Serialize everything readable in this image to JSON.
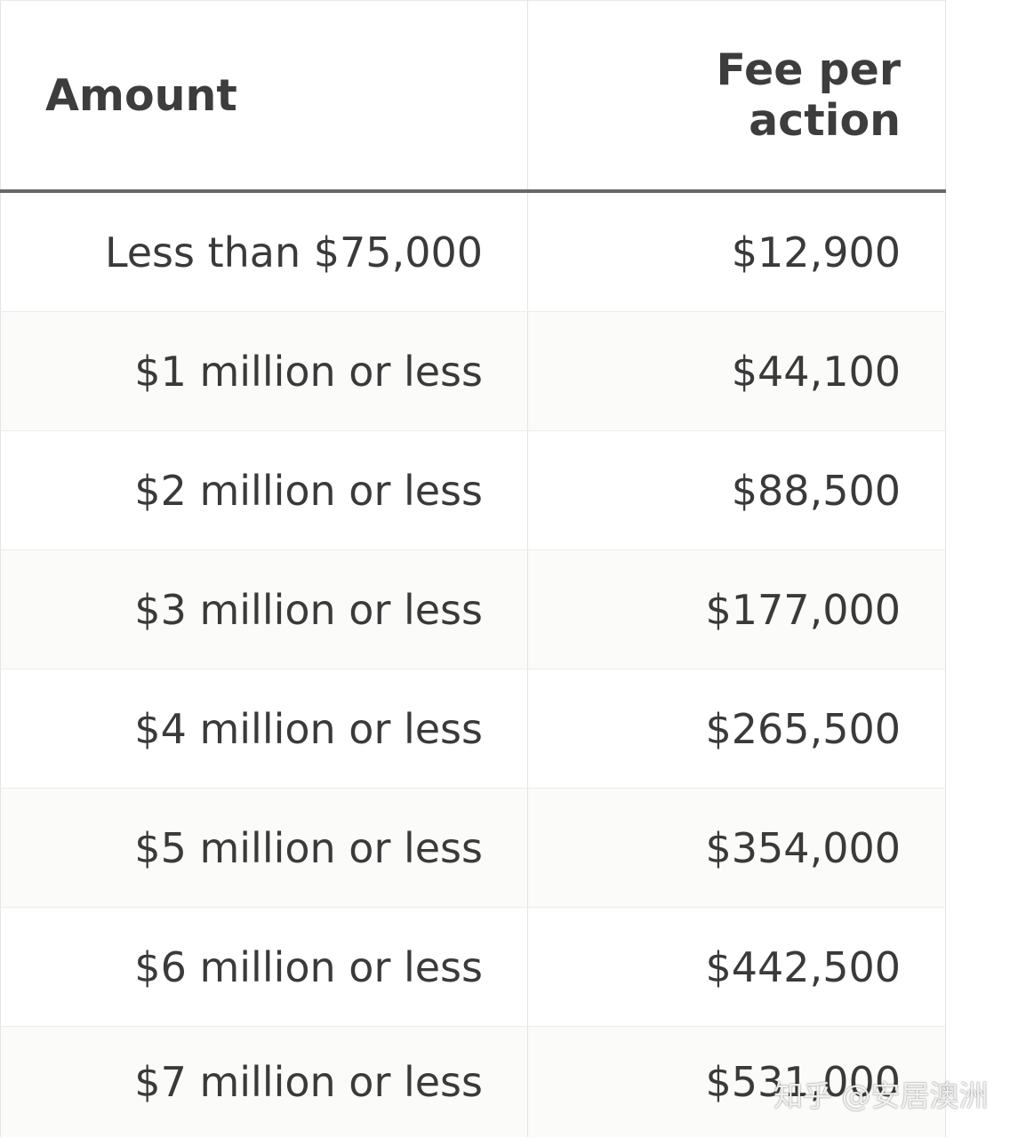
{
  "table": {
    "headers": {
      "amount": "Amount",
      "fee": "Fee per action"
    },
    "rows": [
      {
        "amount": "Less than $75,000",
        "fee": "$12,900"
      },
      {
        "amount": "$1 million or less",
        "fee": "$44,100"
      },
      {
        "amount": "$2 million or less",
        "fee": "$88,500"
      },
      {
        "amount": "$3 million or less",
        "fee": "$177,000"
      },
      {
        "amount": "$4 million or less",
        "fee": "$265,500"
      },
      {
        "amount": "$5 million or less",
        "fee": "$354,000"
      },
      {
        "amount": "$6 million or less",
        "fee": "$442,500"
      },
      {
        "amount": "$7 million or less",
        "fee": "$531,000"
      }
    ]
  },
  "watermark": "知乎 @安居澳洲",
  "colors": {
    "header_rule": "#6a6767",
    "text": "#3a3a3a",
    "shaded_row": "#fbfbf9"
  }
}
